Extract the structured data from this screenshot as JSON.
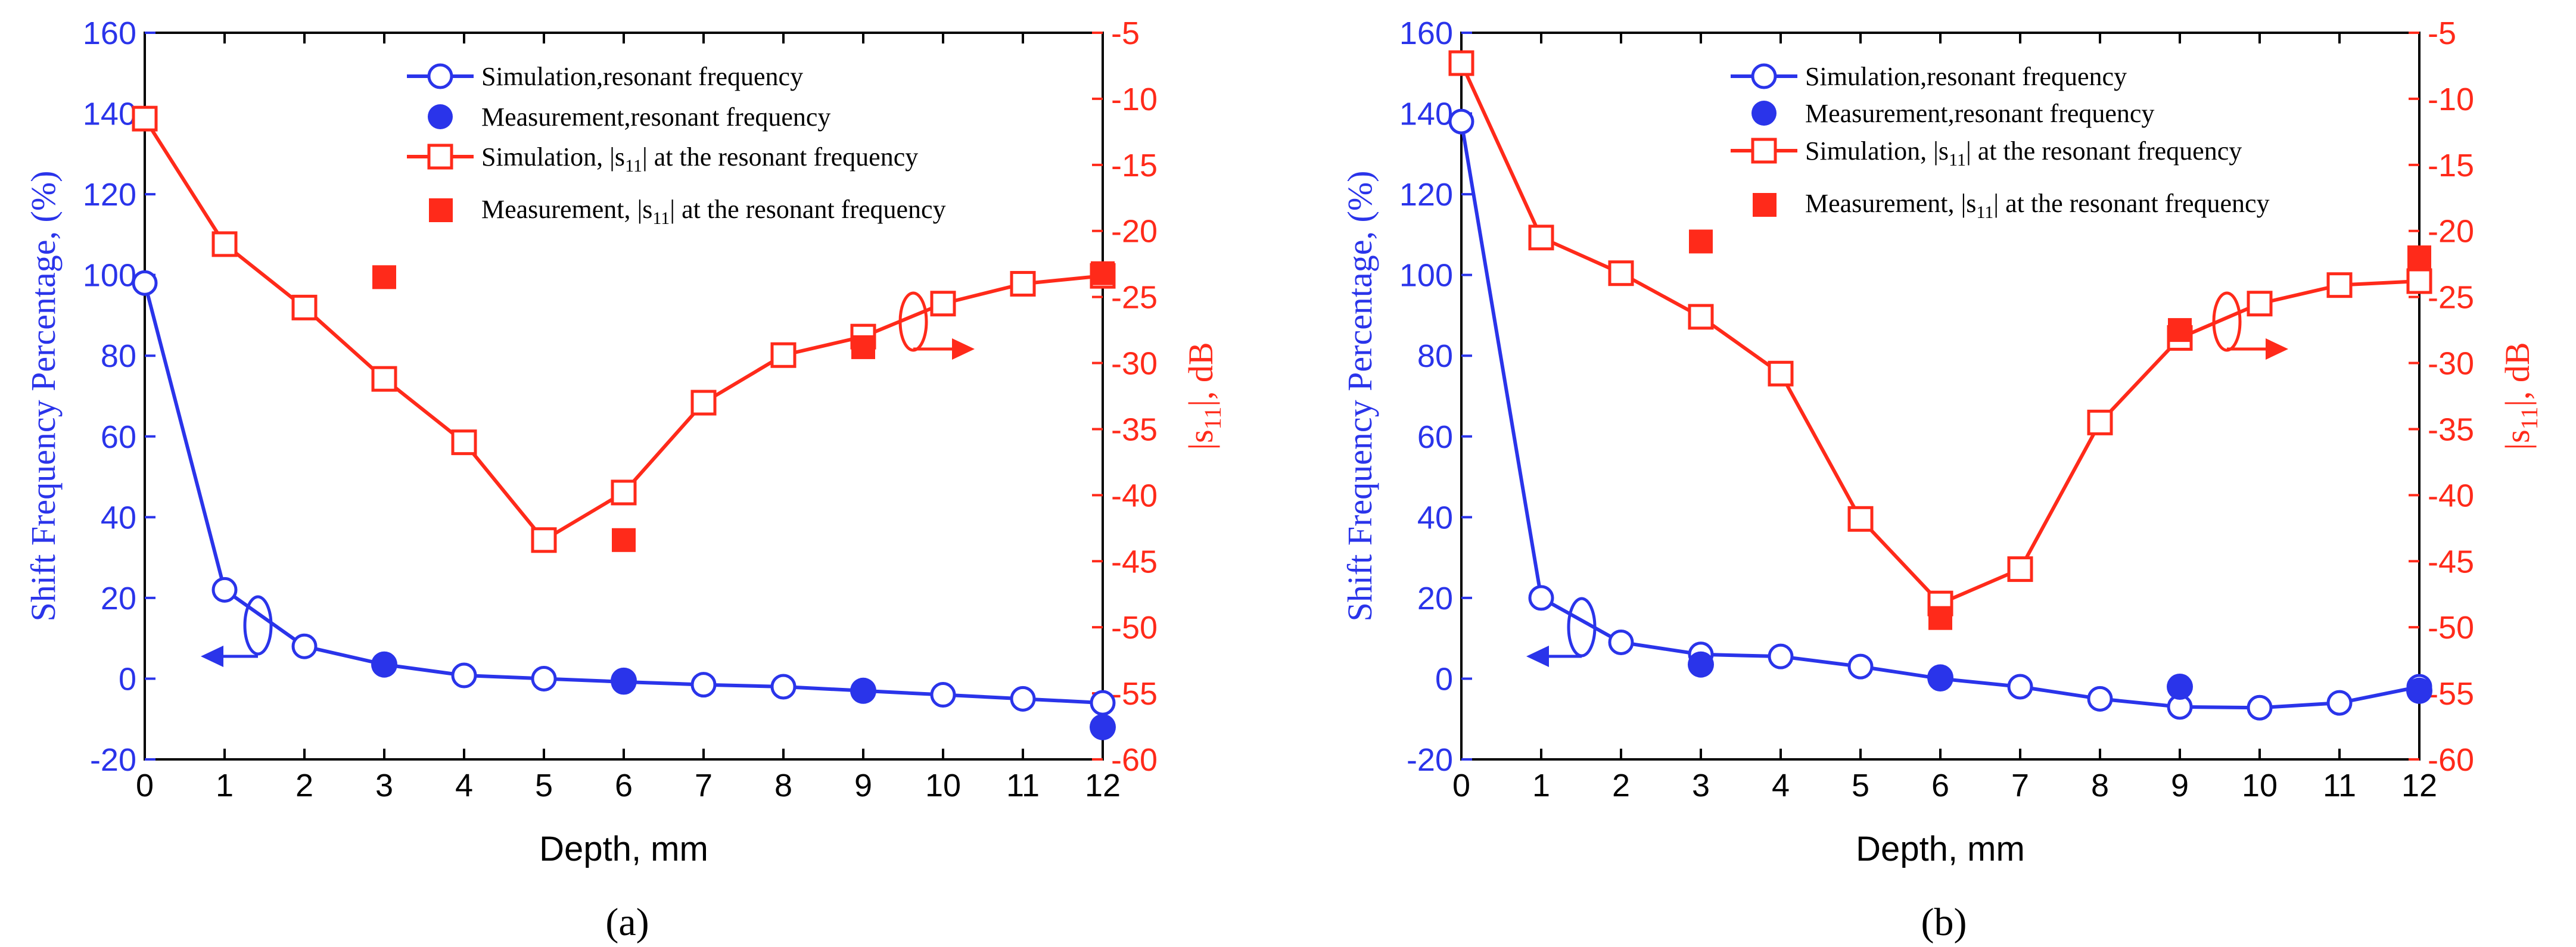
{
  "colors": {
    "left_axis": "#2a34ea",
    "right_axis": "#ff2a1a",
    "frame": "#000000"
  },
  "legend": {
    "sim_freq": "Simulation,resonant frequency",
    "meas_freq": "Measurement,resonant frequency",
    "sim_s11_pre": "Simulation, |s",
    "sim_s11_sub": "11",
    "sim_s11_post": "| at the resonant frequency",
    "meas_s11_pre": "Measurement, |s",
    "meas_s11_sub": "11",
    "meas_s11_post": "| at the resonant frequency"
  },
  "chart_data": [
    {
      "type": "line",
      "panel_label": "(a)",
      "xlabel": "Depth, mm",
      "ylabel_left": "Shift Frequency Percentage, (%)",
      "ylabel_right_pre": "|s",
      "ylabel_right_sub": "11",
      "ylabel_right_post": "|, dB",
      "xlim": [
        0,
        12
      ],
      "ylim_left": [
        -20,
        160
      ],
      "ylim_right": [
        -60,
        -5
      ],
      "xticks": [
        0,
        1,
        2,
        3,
        4,
        5,
        6,
        7,
        8,
        9,
        10,
        11,
        12
      ],
      "yticks_left": [
        -20,
        0,
        20,
        40,
        60,
        80,
        100,
        120,
        140,
        160
      ],
      "yticks_right": [
        -60,
        -55,
        -50,
        -45,
        -40,
        -35,
        -30,
        -25,
        -20,
        -15,
        -10,
        -5
      ],
      "series": [
        {
          "name": "Simulation,resonant frequency",
          "axis": "left",
          "style": "line-open-circle",
          "x": [
            0,
            1,
            2,
            3,
            4,
            5,
            6,
            7,
            8,
            9,
            10,
            11,
            12
          ],
          "y": [
            98,
            22,
            8,
            3.5,
            0.8,
            0,
            -0.8,
            -1.5,
            -2,
            -3,
            -4,
            -5,
            -6
          ]
        },
        {
          "name": "Measurement,resonant frequency",
          "axis": "left",
          "style": "filled-circle",
          "x": [
            3,
            6,
            9,
            12
          ],
          "y": [
            3.5,
            -0.5,
            -3,
            -12
          ]
        },
        {
          "name": "Simulation, |s11| at the resonant frequency",
          "axis": "right",
          "style": "line-open-square",
          "x": [
            0,
            1,
            2,
            3,
            4,
            5,
            6,
            7,
            8,
            9,
            10,
            11,
            12
          ],
          "y": [
            -11.5,
            -21,
            -25.8,
            -31.2,
            -36,
            -43.4,
            -39.8,
            -33,
            -29.4,
            -28,
            -25.5,
            -24,
            -23.4
          ]
        },
        {
          "name": "Measurement, |s11| at the resonant frequency",
          "axis": "right",
          "style": "filled-square",
          "x": [
            3,
            6,
            9,
            12
          ],
          "y": [
            -23.5,
            -43.4,
            -28.8,
            -23.2
          ]
        }
      ]
    },
    {
      "type": "line",
      "panel_label": "(b)",
      "xlabel": "Depth, mm",
      "ylabel_left": "Shift Frequency Percentage, (%)",
      "ylabel_right_pre": "|s",
      "ylabel_right_sub": "11",
      "ylabel_right_post": "|, dB",
      "xlim": [
        0,
        12
      ],
      "ylim_left": [
        -20,
        160
      ],
      "ylim_right": [
        -60,
        -5
      ],
      "xticks": [
        0,
        1,
        2,
        3,
        4,
        5,
        6,
        7,
        8,
        9,
        10,
        11,
        12
      ],
      "yticks_left": [
        -20,
        0,
        20,
        40,
        60,
        80,
        100,
        120,
        140,
        160
      ],
      "yticks_right": [
        -60,
        -55,
        -50,
        -45,
        -40,
        -35,
        -30,
        -25,
        -20,
        -15,
        -10,
        -5
      ],
      "series": [
        {
          "name": "Simulation,resonant frequency",
          "axis": "left",
          "style": "line-open-circle",
          "x": [
            0,
            1,
            2,
            3,
            4,
            5,
            6,
            7,
            8,
            9,
            10,
            11,
            12
          ],
          "y": [
            138,
            20,
            9,
            6,
            5.5,
            3,
            0,
            -2,
            -5,
            -7,
            -7.2,
            -6,
            -2
          ]
        },
        {
          "name": "Measurement,resonant frequency",
          "axis": "left",
          "style": "filled-circle",
          "x": [
            3,
            6,
            9,
            12
          ],
          "y": [
            3.5,
            0.3,
            -2,
            -3
          ]
        },
        {
          "name": "Simulation, |s11| at the resonant frequency",
          "axis": "right",
          "style": "line-open-square",
          "x": [
            0,
            1,
            2,
            3,
            4,
            5,
            6,
            7,
            8,
            9,
            10,
            11,
            12
          ],
          "y": [
            -7.3,
            -20.5,
            -23.2,
            -26.5,
            -30.8,
            -41.8,
            -48.2,
            -45.6,
            -34.5,
            -28.1,
            -25.5,
            -24.1,
            -23.8
          ]
        },
        {
          "name": "Measurement, |s11| at the resonant frequency",
          "axis": "right",
          "style": "filled-square",
          "x": [
            3,
            6,
            9,
            12
          ],
          "y": [
            -20.8,
            -49.3,
            -27.5,
            -22
          ]
        }
      ]
    }
  ]
}
